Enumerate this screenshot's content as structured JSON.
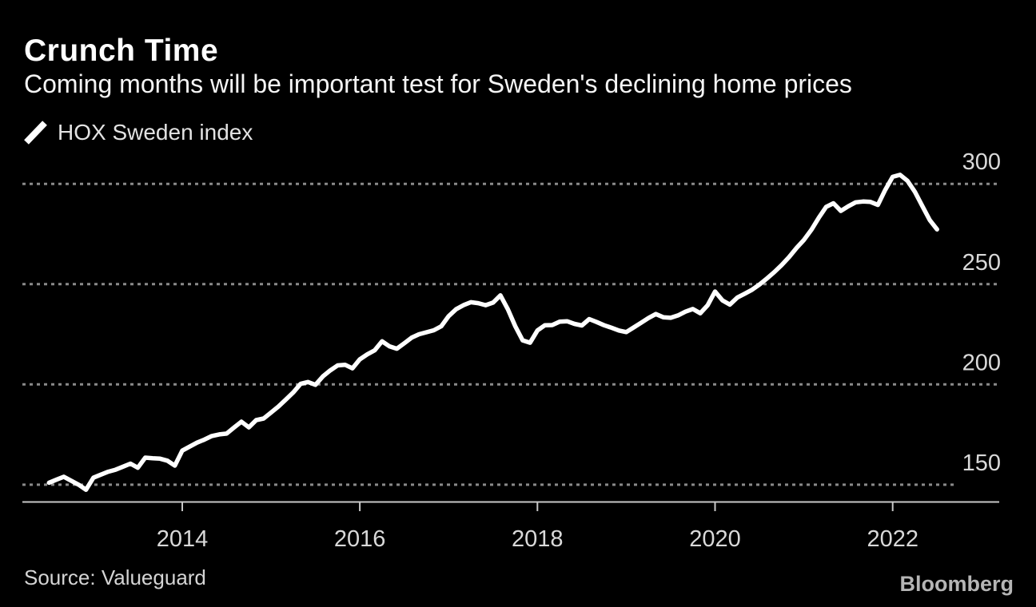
{
  "header": {
    "title": "Crunch Time",
    "subtitle": "Coming months will be important test for Sweden's declining home prices"
  },
  "legend": {
    "label": "HOX Sweden index",
    "marker_color": "#ffffff"
  },
  "footer": {
    "source": "Source: Valueguard",
    "brand": "Bloomberg"
  },
  "colors": {
    "background": "#000000",
    "title": "#ffffff",
    "subtitle": "#f5f5f5",
    "legend_text": "#e3e3e3",
    "grid": "#8a8a8a",
    "axis": "#c8c8c8",
    "tick_label": "#d9d9d9",
    "series": "#ffffff",
    "source_text": "#d4d4d4",
    "brand_text": "#b5b5b5"
  },
  "chart_data": {
    "type": "line",
    "title": "Crunch Time",
    "subtitle": "Coming months will be important test for Sweden's declining home prices",
    "source": "Source: Valueguard",
    "legend_position": "top-left",
    "y_axis_side": "right",
    "grid": "horizontal-dotted",
    "x_ticks": [
      2014,
      2016,
      2018,
      2020,
      2022
    ],
    "y_ticks": [
      150,
      200,
      250,
      300
    ],
    "x_domain": [
      2012.2,
      2023.2
    ],
    "y_domain": [
      141.6,
      316
    ],
    "series": [
      {
        "name": "HOX Sweden index",
        "color": "#ffffff",
        "frequency": "monthly",
        "start_year": 2012,
        "start_month": 7,
        "values": [
          151,
          152.5,
          154,
          152,
          150,
          147.5,
          153.5,
          155,
          156.5,
          157.5,
          159,
          160.5,
          158.5,
          163.5,
          163.2,
          163,
          162,
          159.5,
          167,
          169,
          171,
          172.5,
          174.3,
          175.1,
          175.5,
          178.5,
          181.4,
          178.6,
          182.2,
          183,
          186,
          189,
          192.5,
          196,
          200.3,
          201.2,
          199.8,
          204,
          207,
          209.5,
          209.8,
          208,
          212.5,
          215,
          217,
          221.5,
          219,
          217.8,
          220.5,
          223.3,
          225,
          226,
          227,
          229,
          234,
          237.5,
          239.5,
          241,
          240.5,
          239.5,
          240.8,
          244.4,
          237.5,
          229,
          222,
          220.8,
          226.9,
          229.5,
          229.6,
          231.3,
          231.5,
          230.2,
          229.4,
          232.6,
          231.1,
          229.5,
          228.3,
          226.9,
          226.1,
          228.4,
          230.7,
          233.1,
          235.1,
          233.5,
          233.2,
          234.4,
          236.3,
          237.6,
          235.5,
          239.5,
          246.3,
          241.9,
          239.8,
          243.3,
          245.2,
          247.2,
          249.8,
          252.8,
          256,
          259.5,
          263.5,
          268,
          272,
          277,
          283,
          288.5,
          290.3,
          286.5,
          288.8,
          290.8,
          291.2,
          291,
          289.5,
          297,
          303.5,
          304.5,
          301.5,
          296,
          289,
          282,
          277.3
        ]
      }
    ]
  }
}
